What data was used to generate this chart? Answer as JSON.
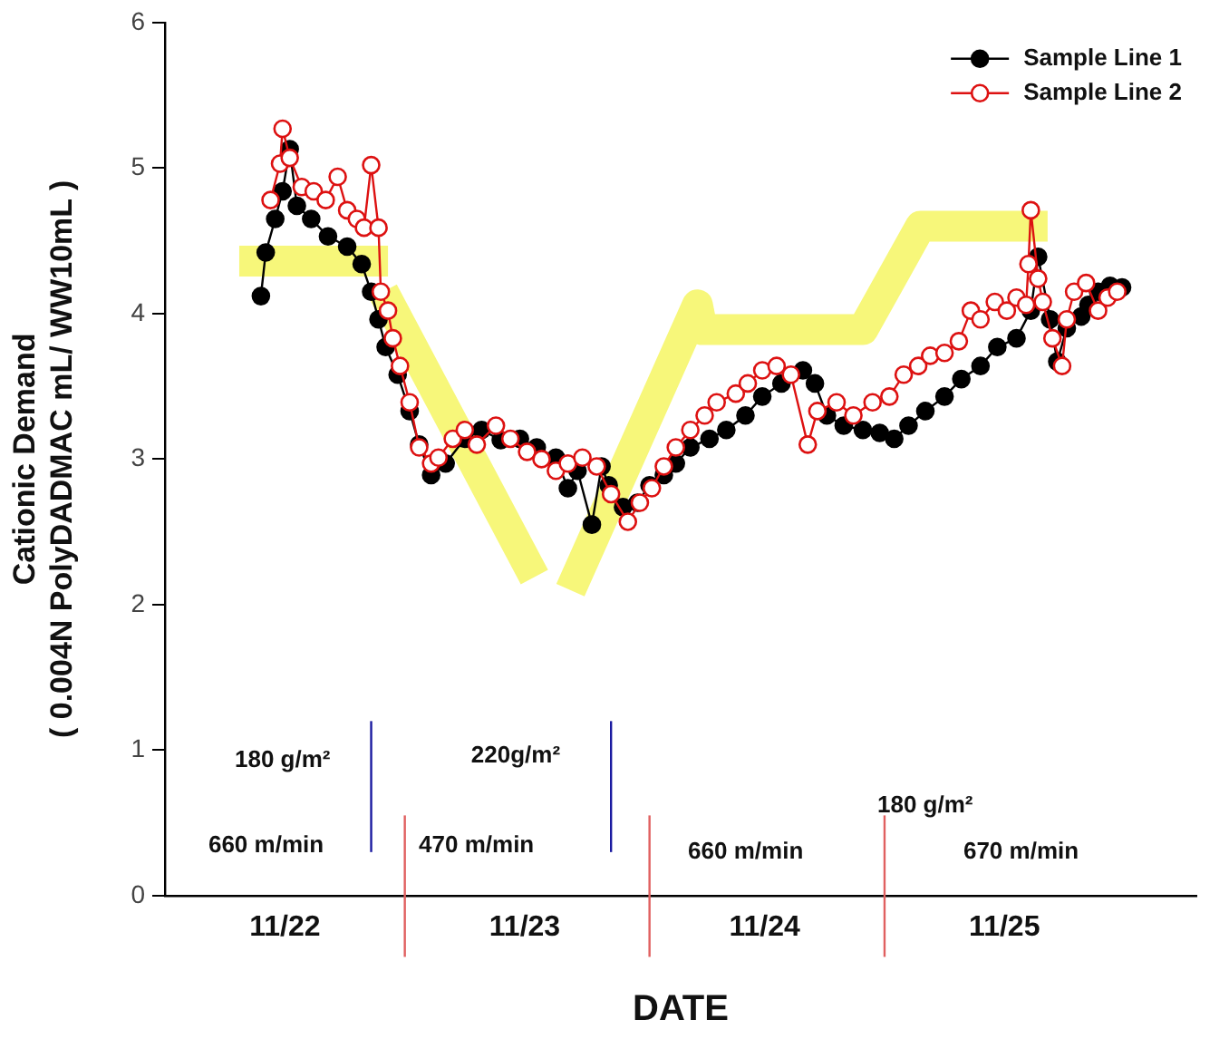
{
  "chart_data": {
    "type": "line",
    "xlabel": "DATE",
    "ylabel": "Cationic Demand\n( 0.004N PolyDADMAC mL/ WW10mL )",
    "xlim": [
      "--11-22T00:00",
      "--11-26T07:12"
    ],
    "xticks": [
      {
        "value": "--11-22T12:00",
        "label": "11/22"
      },
      {
        "value": "--11-23T12:00",
        "label": "11/23"
      },
      {
        "value": "--11-24T12:00",
        "label": "11/24"
      },
      {
        "value": "--11-25T12:00",
        "label": "11/25"
      }
    ],
    "ylim": [
      0,
      6
    ],
    "yticks": [
      0,
      1,
      2,
      3,
      4,
      5,
      6
    ],
    "legend": "top right",
    "marker": "circle",
    "series": [
      {
        "color": "#f7f77a",
        "marker": "none",
        "x": [
          "--11-22T07:26",
          "--11-22T22:19",
          "--11-22T22:05",
          "--11-22T21:50",
          "--11-23T12:58",
          "--11-23T14:24",
          "--11-23T16:34",
          "--11-24T05:17",
          "--11-24T05:46",
          "--11-24T21:50",
          "--11-25T03:36",
          "--11-25T16:19"
        ],
        "values": [
          4.36,
          4.36,
          null,
          4.15,
          2.19,
          null,
          2.1,
          4.06,
          3.89,
          3.89,
          4.6,
          4.6
        ]
      },
      {
        "name": "Sample Line 1",
        "color": "#000000",
        "x": [
          "--11-22T09:36",
          "--11-22T10:05",
          "--11-22T11:02",
          "--11-22T11:46",
          "--11-22T12:29",
          "--11-22T13:12",
          "--11-22T14:38",
          "--11-22T16:19",
          "--11-22T18:14",
          "--11-22T19:41",
          "--11-22T20:38",
          "--11-22T21:22",
          "--11-22T22:05",
          "--11-22T23:17",
          "--11-23T00:29",
          "--11-23T01:26",
          "--11-23T02:38",
          "--11-23T04:05",
          "--11-23T06:00",
          "--11-23T07:41",
          "--11-23T09:36",
          "--11-23T11:31",
          "--11-23T13:12",
          "--11-23T15:07",
          "--11-23T16:19",
          "--11-23T17:17",
          "--11-23T18:43",
          "--11-23T19:41",
          "--11-23T20:24",
          "--11-23T21:50",
          "--11-23T23:17",
          "--11-24T00:29",
          "--11-24T01:55",
          "--11-24T03:07",
          "--11-24T04:34",
          "--11-24T06:29",
          "--11-24T08:10",
          "--11-24T10:05",
          "--11-24T11:46",
          "--11-24T13:41",
          "--11-24T15:50",
          "--11-24T17:02",
          "--11-24T18:14",
          "--11-24T19:55",
          "--11-24T21:50",
          "--11-24T23:31",
          "--11-25T00:58",
          "--11-25T02:24",
          "--11-25T04:05",
          "--11-25T06:00",
          "--11-25T07:41",
          "--11-25T09:36",
          "--11-25T11:17",
          "--11-25T13:12",
          "--11-25T14:38",
          "--11-25T15:22",
          "--11-25T16:34",
          "--11-25T17:17",
          "--11-25T18:14",
          "--11-25T19:41",
          "--11-25T20:24",
          "--11-25T21:22",
          "--11-25T22:34",
          "--11-25T23:46"
        ],
        "values": [
          4.12,
          4.42,
          4.65,
          4.84,
          5.13,
          4.74,
          4.65,
          4.53,
          4.46,
          4.34,
          4.15,
          3.96,
          3.77,
          3.58,
          3.33,
          3.1,
          2.89,
          2.97,
          3.14,
          3.2,
          3.13,
          3.14,
          3.08,
          3.01,
          2.8,
          2.92,
          2.55,
          2.95,
          2.82,
          2.67,
          2.7,
          2.82,
          2.89,
          2.97,
          3.08,
          3.14,
          3.2,
          3.3,
          3.43,
          3.52,
          3.61,
          3.52,
          3.3,
          3.23,
          3.2,
          3.18,
          3.14,
          3.23,
          3.33,
          3.43,
          3.55,
          3.64,
          3.77,
          3.83,
          4.02,
          4.39,
          3.96,
          3.67,
          3.9,
          3.98,
          4.06,
          4.15,
          4.19,
          4.18
        ]
      },
      {
        "name": "Sample Line 2",
        "color": "#dd1111",
        "x": [
          "--11-22T10:34",
          "--11-22T11:31",
          "--11-22T11:46",
          "--11-22T12:29",
          "--11-22T13:41",
          "--11-22T14:53",
          "--11-22T16:05",
          "--11-22T17:17",
          "--11-22T18:14",
          "--11-22T19:12",
          "--11-22T19:55",
          "--11-22T20:38",
          "--11-22T21:22",
          "--11-22T21:36",
          "--11-22T22:19",
          "--11-22T22:48",
          "--11-22T23:31",
          "--11-23T00:29",
          "--11-23T01:26",
          "--11-23T02:38",
          "--11-23T03:22",
          "--11-23T04:48",
          "--11-23T06:00",
          "--11-23T07:12",
          "--11-23T09:07",
          "--11-23T10:34",
          "--11-23T12:14",
          "--11-23T13:41",
          "--11-23T15:07",
          "--11-23T16:19",
          "--11-23T17:46",
          "--11-23T19:12",
          "--11-23T20:38",
          "--11-23T22:19",
          "--11-23T23:31",
          "--11-24T00:43",
          "--11-24T01:55",
          "--11-24T03:07",
          "--11-24T04:34",
          "--11-24T06:00",
          "--11-24T07:12",
          "--11-24T09:07",
          "--11-24T10:19",
          "--11-24T11:46",
          "--11-24T13:12",
          "--11-24T14:38",
          "--11-24T16:19",
          "--11-24T17:17",
          "--11-24T19:12",
          "--11-24T20:53",
          "--11-24T22:48",
          "--11-25T00:29",
          "--11-25T01:55",
          "--11-25T03:22",
          "--11-25T04:34",
          "--11-25T06:00",
          "--11-25T07:26",
          "--11-25T08:38",
          "--11-25T09:36",
          "--11-25T11:02",
          "--11-25T12:14",
          "--11-25T13:12",
          "--11-25T14:10",
          "--11-25T14:24",
          "--11-25T14:38",
          "--11-25T15:22",
          "--11-25T15:50",
          "--11-25T16:48",
          "--11-25T17:46",
          "--11-25T18:14",
          "--11-25T18:58",
          "--11-25T20:10",
          "--11-25T21:22",
          "--11-25T22:19",
          "--11-25T23:17"
        ],
        "values": [
          4.78,
          5.03,
          5.27,
          5.07,
          4.87,
          4.84,
          4.78,
          4.94,
          4.71,
          4.65,
          4.59,
          5.02,
          4.59,
          4.15,
          4.02,
          3.83,
          3.64,
          3.39,
          3.08,
          2.97,
          3.01,
          3.14,
          3.2,
          3.1,
          3.23,
          3.14,
          3.05,
          3.0,
          2.92,
          2.97,
          3.01,
          2.95,
          2.76,
          2.57,
          2.7,
          2.8,
          2.95,
          3.08,
          3.2,
          3.3,
          3.39,
          3.45,
          3.52,
          3.61,
          3.64,
          3.58,
          3.1,
          3.33,
          3.39,
          3.3,
          3.39,
          3.43,
          3.58,
          3.64,
          3.71,
          3.73,
          3.81,
          4.02,
          3.96,
          4.08,
          4.02,
          4.11,
          4.06,
          4.34,
          4.71,
          4.24,
          4.08,
          3.83,
          3.64,
          3.96,
          4.15,
          4.21,
          4.02,
          4.11,
          4.15
        ]
      }
    ],
    "ref_lines": [
      {
        "axis": "x",
        "value": "--11-22T20:38",
        "color": "#1a1aa0"
      },
      {
        "axis": "x",
        "value": "--11-23T20:38",
        "color": "#1a1aa0"
      },
      {
        "axis": "x",
        "value": "--11-23T00:00",
        "color": "#e06060"
      },
      {
        "axis": "x",
        "value": "--11-24T00:29",
        "color": "#e06060"
      },
      {
        "axis": "x",
        "value": "--11-25T00:00",
        "color": "#e06060"
      }
    ],
    "annotations": [
      "180 g/m²",
      "660 m/min",
      "220g/m²",
      "470 m/min",
      "660 m/min",
      "180 g/m²",
      "670 m/min"
    ]
  }
}
